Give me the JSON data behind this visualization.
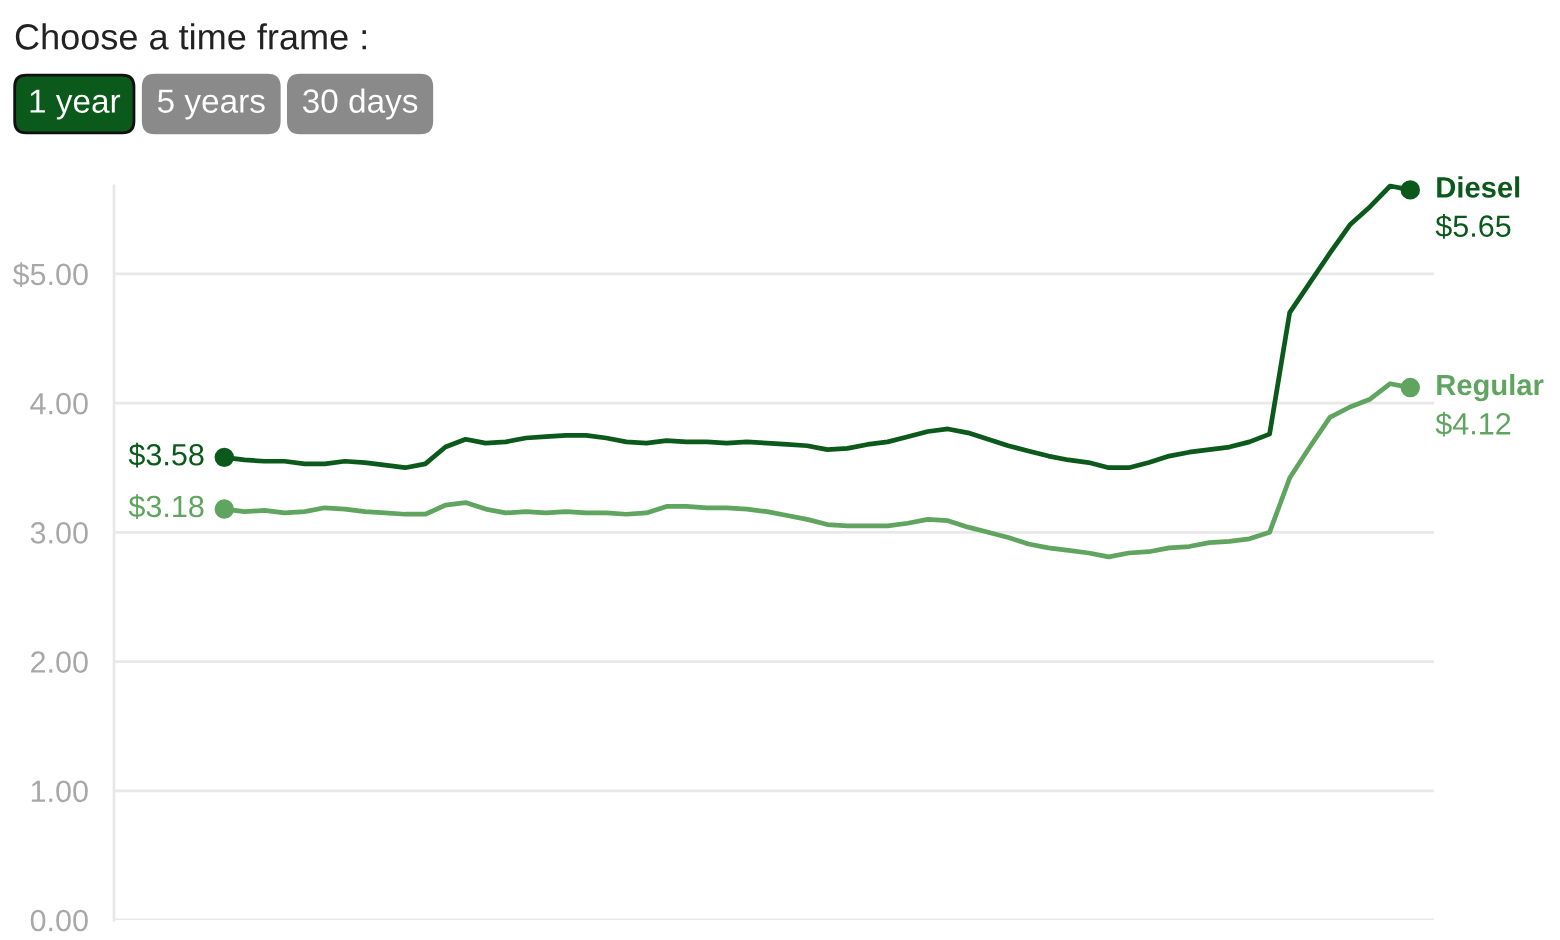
{
  "chart_data": {
    "type": "line",
    "title": "Choose a time frame :",
    "annotations": [
      "1 year",
      "5 years",
      "30 days"
    ],
    "categories": [
      null,
      null,
      null,
      null,
      null,
      null,
      null,
      null,
      null,
      null,
      null,
      null,
      null,
      null,
      null,
      null,
      null,
      null,
      null,
      null,
      null,
      null,
      null,
      null,
      null,
      null,
      null,
      null,
      null,
      null,
      null,
      null,
      null,
      null,
      null,
      null,
      null,
      null,
      null,
      null,
      null,
      null,
      null,
      null,
      null,
      null,
      null,
      null,
      null,
      null,
      null,
      null,
      null,
      null,
      null,
      null,
      null,
      null,
      null,
      null
    ],
    "series": [
      {
        "name": "Diesel",
        "color": "#0b5a1c",
        "values": [
          3.58,
          3.56,
          3.55,
          3.55,
          3.53,
          3.53,
          3.55,
          3.54,
          3.52,
          3.5,
          3.53,
          3.66,
          3.72,
          3.69,
          3.7,
          3.73,
          3.74,
          3.75,
          3.75,
          3.73,
          3.7,
          3.69,
          3.71,
          3.7,
          3.7,
          3.69,
          3.7,
          3.69,
          3.68,
          3.67,
          3.64,
          3.65,
          3.68,
          3.7,
          3.74,
          3.78,
          3.8,
          3.77,
          3.72,
          3.67,
          3.63,
          3.59,
          3.56,
          3.54,
          3.5,
          3.5,
          3.54,
          3.59,
          3.62,
          3.64,
          3.66,
          3.7,
          3.76,
          4.7,
          4.93,
          5.16,
          5.38,
          5.52,
          5.68,
          5.65
        ],
        "value_labels": [
          "$3.58",
          null,
          null,
          null,
          null,
          null,
          null,
          null,
          null,
          null,
          null,
          null,
          null,
          null,
          null,
          null,
          null,
          null,
          null,
          null,
          null,
          null,
          null,
          null,
          null,
          null,
          null,
          null,
          null,
          null,
          null,
          null,
          null,
          null,
          null,
          null,
          null,
          null,
          null,
          null,
          null,
          null,
          null,
          null,
          null,
          null,
          null,
          null,
          null,
          null,
          null,
          null,
          null,
          null,
          null,
          null,
          null,
          null,
          null,
          "$5.65"
        ]
      },
      {
        "name": "Regular",
        "color": "#5fa55f",
        "values": [
          3.18,
          3.16,
          3.17,
          3.15,
          3.16,
          3.19,
          3.18,
          3.16,
          3.15,
          3.14,
          3.14,
          3.21,
          3.23,
          3.18,
          3.15,
          3.16,
          3.15,
          3.16,
          3.15,
          3.15,
          3.14,
          3.15,
          3.2,
          3.2,
          3.19,
          3.19,
          3.18,
          3.16,
          3.13,
          3.1,
          3.06,
          3.05,
          3.05,
          3.05,
          3.07,
          3.1,
          3.09,
          3.04,
          3.0,
          2.96,
          2.91,
          2.88,
          2.86,
          2.84,
          2.81,
          2.84,
          2.85,
          2.88,
          2.89,
          2.92,
          2.93,
          2.95,
          3.0,
          3.42,
          3.66,
          3.89,
          3.97,
          4.03,
          4.15,
          4.12
        ],
        "value_labels": [
          "$3.18",
          null,
          null,
          null,
          null,
          null,
          null,
          null,
          null,
          null,
          null,
          null,
          null,
          null,
          null,
          null,
          null,
          null,
          null,
          null,
          null,
          null,
          null,
          null,
          null,
          null,
          null,
          null,
          null,
          null,
          null,
          null,
          null,
          null,
          null,
          null,
          null,
          null,
          null,
          null,
          null,
          null,
          null,
          null,
          null,
          null,
          null,
          null,
          null,
          null,
          null,
          null,
          null,
          null,
          null,
          null,
          null,
          null,
          null,
          "$4.12"
        ]
      }
    ],
    "ylim": [
      0,
      5.68
    ],
    "yticks": [
      {
        "value": 0,
        "label": "0.00"
      },
      {
        "value": 1,
        "label": "1.00"
      },
      {
        "value": 2,
        "label": "2.00"
      },
      {
        "value": 3,
        "label": "3.00"
      },
      {
        "value": 4,
        "label": "4.00"
      },
      {
        "value": 5,
        "label": "$5.00"
      }
    ],
    "grid": "y",
    "tick_labels": "y",
    "line_style": "solid"
  }
}
